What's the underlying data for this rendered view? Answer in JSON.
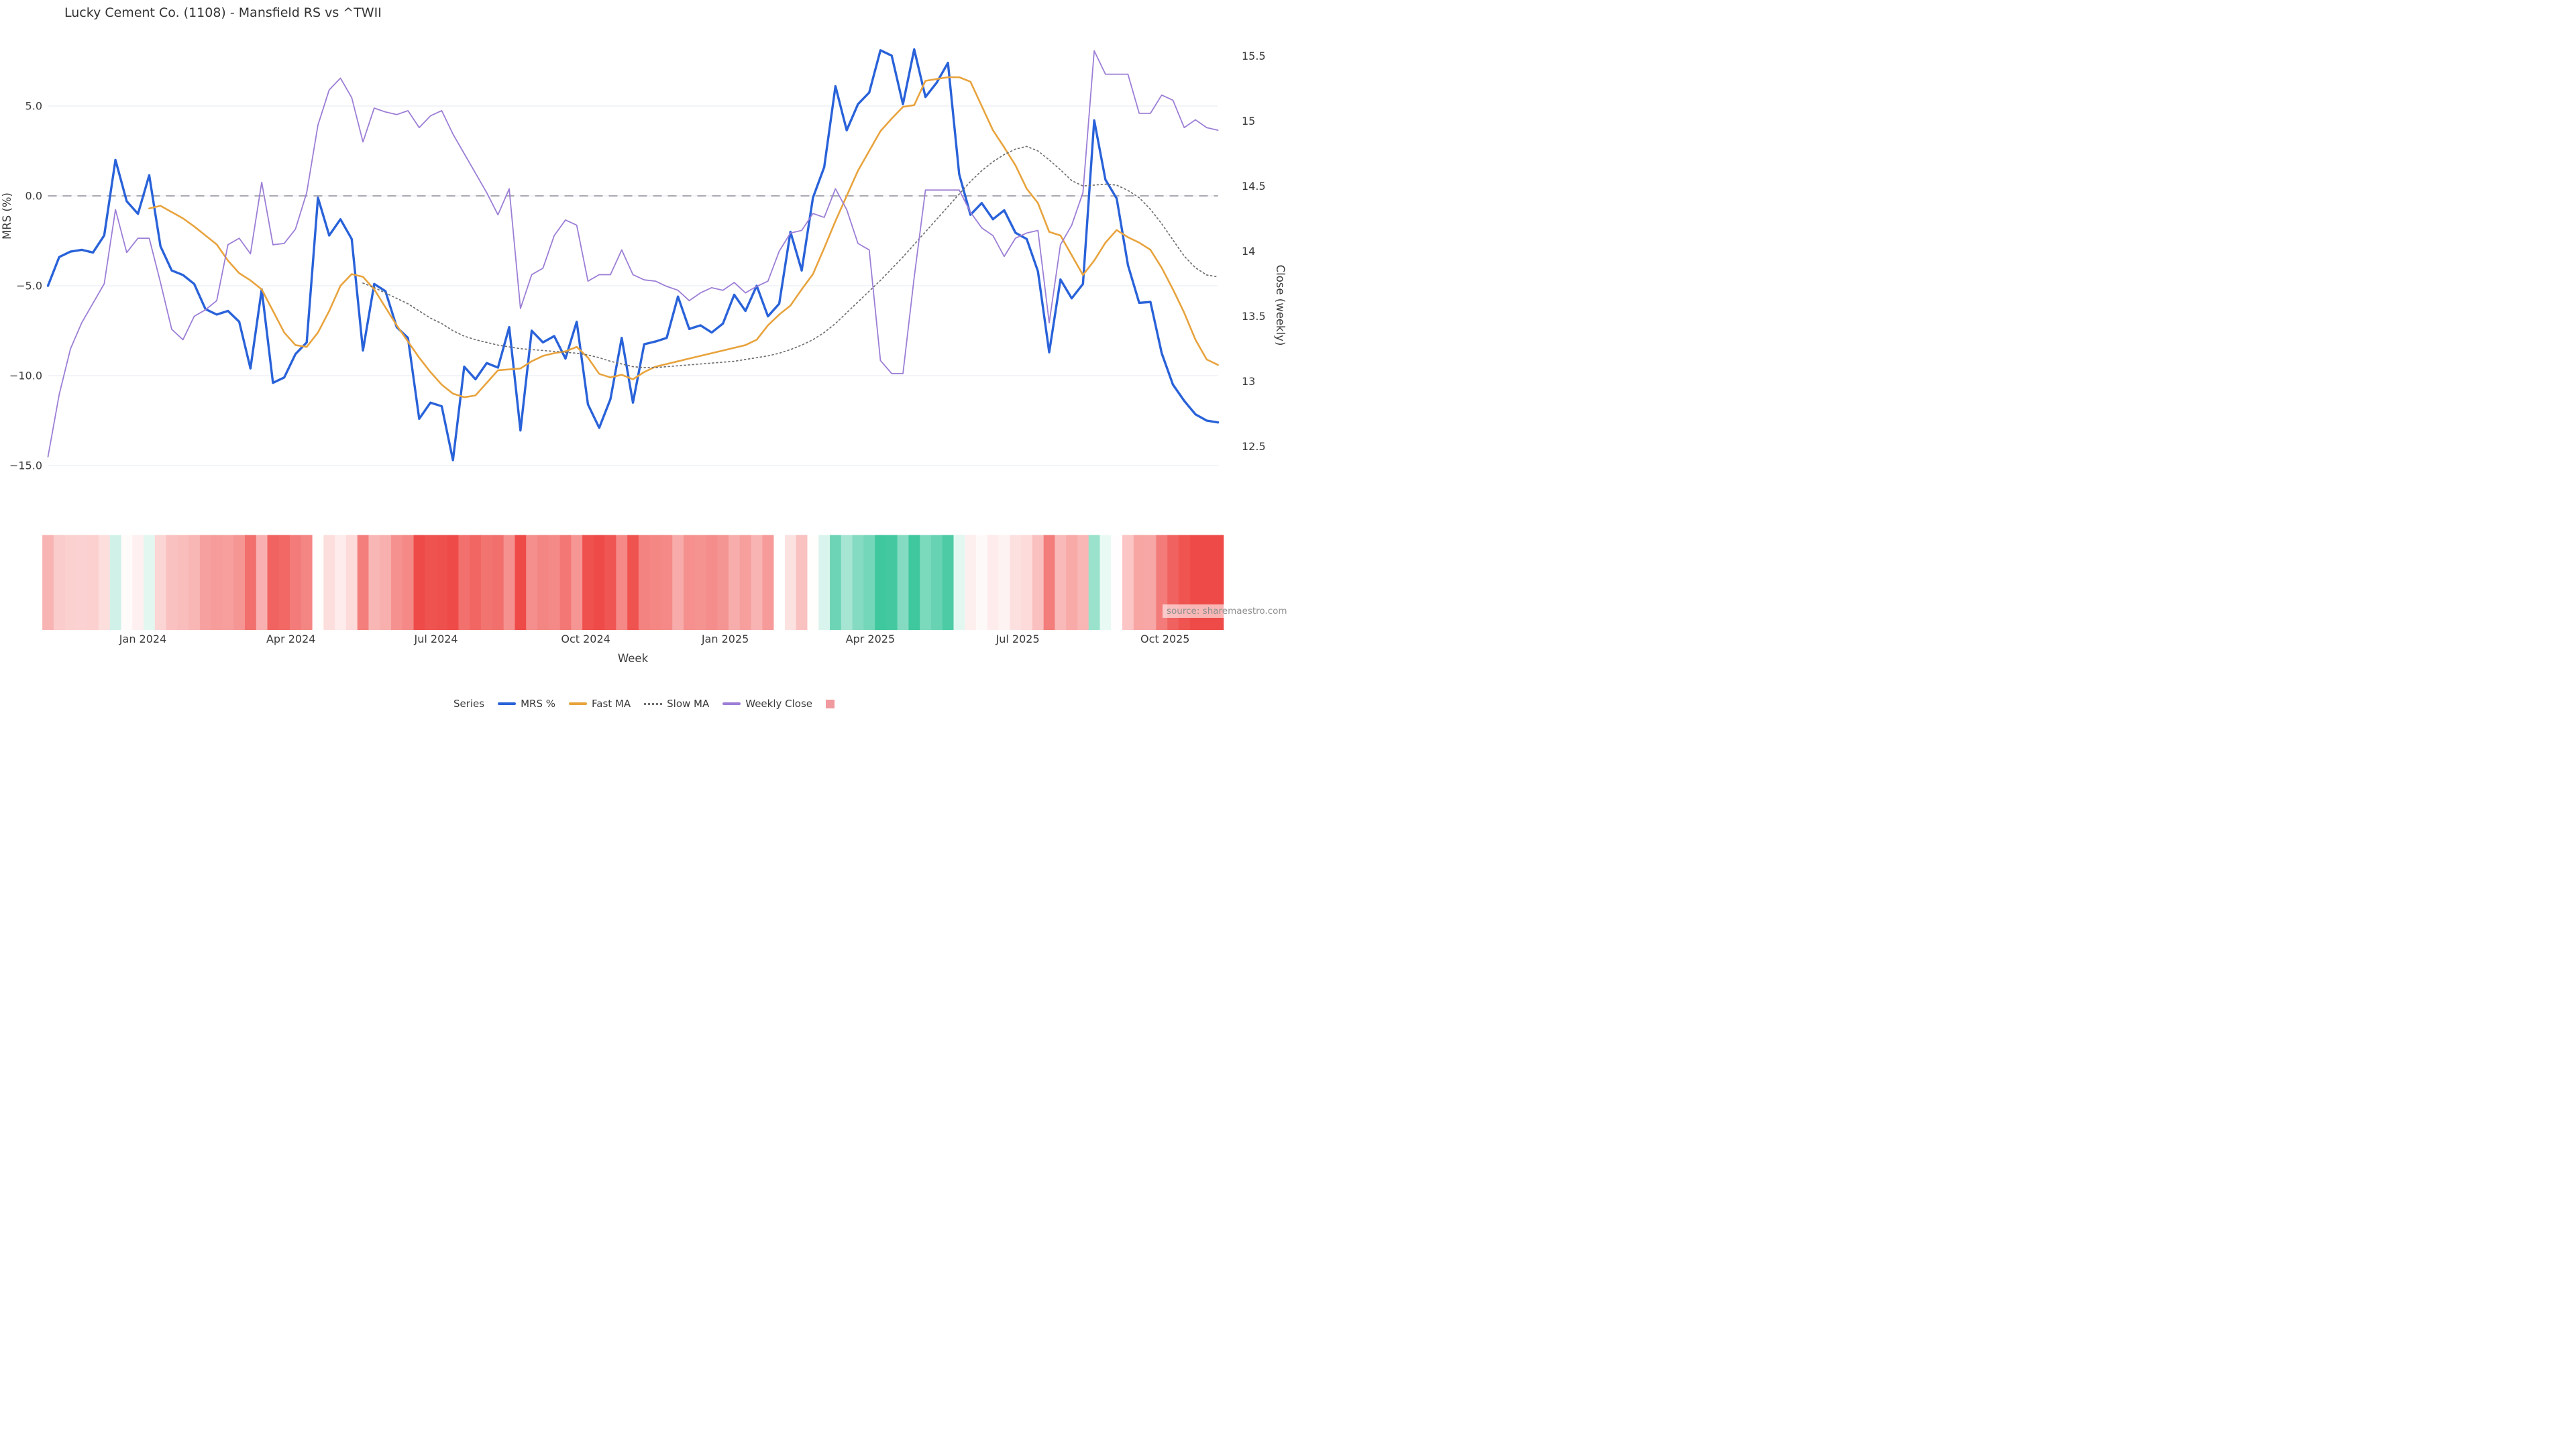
{
  "title": "Lucky Cement Co. (1108) - Mansfield RS vs ^TWII",
  "source_note": "source: sharemaestro.com",
  "axes": {
    "y_left": {
      "title": "MRS (%)",
      "ticks": [
        {
          "label": "5.0",
          "value": 5
        },
        {
          "label": "0.0",
          "value": 0
        },
        {
          "label": "−5.0",
          "value": -5
        },
        {
          "label": "−10.0",
          "value": -10
        },
        {
          "label": "−15.0",
          "value": -15
        }
      ]
    },
    "y_right": {
      "title": "Close (weekly)",
      "ticks": [
        {
          "label": "15.5",
          "value": 15.5
        },
        {
          "label": "15",
          "value": 15
        },
        {
          "label": "14.5",
          "value": 14.5
        },
        {
          "label": "14",
          "value": 14
        },
        {
          "label": "13.5",
          "value": 13.5
        },
        {
          "label": "13",
          "value": 13
        },
        {
          "label": "12.5",
          "value": 12.5
        }
      ]
    },
    "x": {
      "title": "Week",
      "ticks": [
        {
          "label": "Jan 2024",
          "week": 8.44
        },
        {
          "label": "Apr 2024",
          "week": 21.6
        },
        {
          "label": "Jul 2024",
          "week": 34.5
        },
        {
          "label": "Oct 2024",
          "week": 47.8
        },
        {
          "label": "Jan 2025",
          "week": 60.2
        },
        {
          "label": "Apr 2025",
          "week": 73.1
        },
        {
          "label": "Jul 2025",
          "week": 86.2
        },
        {
          "label": "Oct 2025",
          "week": 99.3
        }
      ]
    }
  },
  "legend": {
    "title": "Series",
    "items": [
      {
        "label": "MRS %",
        "color": "#2962d9",
        "style": "line"
      },
      {
        "label": "Fast MA",
        "color": "#e8a33d",
        "style": "line"
      },
      {
        "label": "Slow MA",
        "color": "#707070",
        "style": "dotted"
      },
      {
        "label": "Weekly Close",
        "color": "#9c7ed6",
        "style": "line"
      },
      {
        "label": "",
        "color": "#f0999e",
        "style": "square"
      }
    ]
  },
  "chart_data": {
    "type": "line",
    "x_unit": "weekly index (0 = first week shown, ~Nov 2023)",
    "n_points": 105,
    "ylim_left": [
      -15.5,
      8.8
    ],
    "ylim_right": [
      12.3,
      15.6
    ],
    "zero_dashed_line": 0,
    "grid": "horizontal, left-axis ticks",
    "legend_position": "bottom center",
    "series": [
      {
        "name": "MRS %",
        "axis": "left",
        "color": "#2962d9",
        "width": 3.4,
        "values": [
          -5.0,
          -3.4,
          -3.1,
          -3.0,
          -3.15,
          -2.2,
          2.0,
          -0.3,
          -1.0,
          1.15,
          -2.8,
          -4.15,
          -4.4,
          -4.9,
          -6.3,
          -6.6,
          -6.4,
          -7.0,
          -9.6,
          -5.2,
          -10.4,
          -10.1,
          -8.8,
          -8.15,
          -0.1,
          -2.2,
          -1.3,
          -2.4,
          -8.6,
          -4.9,
          -5.3,
          -7.3,
          -7.9,
          -12.4,
          -11.5,
          -11.7,
          -14.7,
          -9.5,
          -10.2,
          -9.3,
          -9.55,
          -7.3,
          -13.05,
          -7.5,
          -8.15,
          -7.8,
          -9.05,
          -7.0,
          -11.6,
          -12.9,
          -11.3,
          -7.9,
          -11.5,
          -8.25,
          -8.1,
          -7.9,
          -5.6,
          -7.4,
          -7.2,
          -7.6,
          -7.1,
          -5.5,
          -6.4,
          -5.0,
          -6.7,
          -6.0,
          -2.0,
          -4.15,
          -0.1,
          1.6,
          6.1,
          3.65,
          5.1,
          5.75,
          8.1,
          7.8,
          5.1,
          8.15,
          5.5,
          6.3,
          7.4,
          1.2,
          -1.05,
          -0.4,
          -1.3,
          -0.8,
          -2.05,
          -2.4,
          -4.2,
          -8.7,
          -4.65,
          -5.7,
          -4.9,
          4.2,
          0.9,
          -0.15,
          -3.85,
          -5.95,
          -5.9,
          -8.75,
          -10.5,
          -11.4,
          -12.15,
          -12.5,
          -12.6
        ]
      },
      {
        "name": "Fast MA",
        "axis": "left",
        "color": "#e8a33d",
        "width": 2.6,
        "values": [
          null,
          null,
          null,
          null,
          null,
          null,
          null,
          null,
          null,
          -0.7,
          -0.55,
          -0.9,
          -1.25,
          -1.7,
          -2.2,
          -2.7,
          -3.6,
          -4.3,
          -4.7,
          -5.2,
          -6.4,
          -7.6,
          -8.3,
          -8.4,
          -7.6,
          -6.4,
          -5.0,
          -4.35,
          -4.5,
          -5.2,
          -6.2,
          -7.2,
          -8.1,
          -9.0,
          -9.8,
          -10.5,
          -11.0,
          -11.2,
          -11.1,
          -10.4,
          -9.7,
          -9.65,
          -9.6,
          -9.2,
          -8.9,
          -8.75,
          -8.65,
          -8.4,
          -9.0,
          -9.9,
          -10.1,
          -9.95,
          -10.2,
          -9.8,
          -9.5,
          -9.35,
          -9.2,
          -9.05,
          -8.9,
          -8.75,
          -8.6,
          -8.45,
          -8.3,
          -8.0,
          -7.2,
          -6.6,
          -6.1,
          -5.2,
          -4.35,
          -2.9,
          -1.4,
          0.0,
          1.4,
          2.5,
          3.6,
          4.3,
          4.95,
          5.05,
          6.4,
          6.5,
          6.6,
          6.6,
          6.35,
          5.0,
          3.65,
          2.7,
          1.7,
          0.4,
          -0.4,
          -2.0,
          -2.2,
          -3.3,
          -4.4,
          -3.6,
          -2.6,
          -1.9,
          -2.3,
          -2.6,
          -3.0,
          -4.0,
          -5.2,
          -6.5,
          -8.0,
          -9.1,
          -9.4
        ]
      },
      {
        "name": "Slow MA",
        "axis": "left",
        "color": "#707070",
        "width": 1.7,
        "dash": "2 4",
        "values": [
          null,
          null,
          null,
          null,
          null,
          null,
          null,
          null,
          null,
          null,
          null,
          null,
          null,
          null,
          null,
          null,
          null,
          null,
          null,
          null,
          null,
          null,
          null,
          null,
          null,
          null,
          null,
          null,
          -4.85,
          -5.1,
          -5.4,
          -5.7,
          -6.0,
          -6.4,
          -6.8,
          -7.1,
          -7.5,
          -7.8,
          -8.0,
          -8.15,
          -8.3,
          -8.4,
          -8.5,
          -8.55,
          -8.6,
          -8.65,
          -8.7,
          -8.75,
          -8.85,
          -9.0,
          -9.2,
          -9.35,
          -9.5,
          -9.55,
          -9.55,
          -9.5,
          -9.45,
          -9.4,
          -9.35,
          -9.3,
          -9.25,
          -9.2,
          -9.1,
          -9.0,
          -8.9,
          -8.75,
          -8.55,
          -8.3,
          -8.0,
          -7.6,
          -7.1,
          -6.5,
          -5.9,
          -5.3,
          -4.7,
          -4.05,
          -3.4,
          -2.7,
          -2.0,
          -1.3,
          -0.6,
          0.1,
          0.8,
          1.4,
          1.9,
          2.3,
          2.6,
          2.75,
          2.5,
          2.0,
          1.45,
          0.85,
          0.55,
          0.6,
          0.65,
          0.6,
          0.3,
          -0.1,
          -0.75,
          -1.55,
          -2.45,
          -3.35,
          -4.0,
          -4.4,
          -4.5
        ]
      },
      {
        "name": "Weekly Close",
        "axis": "right",
        "color": "#9c7ed6",
        "width": 1.8,
        "values": [
          12.42,
          12.9,
          13.25,
          13.45,
          13.6,
          13.75,
          14.32,
          13.99,
          14.1,
          14.1,
          13.76,
          13.4,
          13.32,
          13.5,
          13.55,
          13.62,
          14.05,
          14.1,
          13.98,
          14.53,
          14.05,
          14.06,
          14.17,
          14.45,
          14.97,
          15.24,
          15.33,
          15.18,
          14.84,
          15.1,
          15.07,
          15.05,
          15.08,
          14.95,
          15.04,
          15.08,
          14.9,
          14.75,
          14.6,
          14.45,
          14.28,
          14.48,
          13.56,
          13.82,
          13.87,
          14.12,
          14.24,
          14.2,
          13.77,
          13.82,
          13.82,
          14.01,
          13.82,
          13.78,
          13.77,
          13.73,
          13.7,
          13.62,
          13.68,
          13.72,
          13.7,
          13.76,
          13.68,
          13.73,
          13.77,
          14.0,
          14.14,
          14.16,
          14.29,
          14.26,
          14.48,
          14.32,
          14.06,
          14.01,
          13.16,
          13.06,
          13.06,
          13.8,
          14.47,
          14.47,
          14.47,
          14.47,
          14.3,
          14.18,
          14.12,
          13.96,
          14.1,
          14.14,
          14.16,
          13.45,
          14.05,
          14.2,
          14.45,
          15.54,
          15.36,
          15.36,
          15.36,
          15.06,
          15.06,
          15.2,
          15.16,
          14.95,
          15.01,
          14.95,
          14.93
        ]
      }
    ],
    "heatmap": {
      "based_on": "MRS %",
      "description": "weekly strip below plot; red = negative MRS, green = positive MRS, white gap at missing week",
      "gap_week": 65,
      "negative_color": "#ee4b48",
      "negative_saturation_at": -12,
      "positive_color": "#3fc79e",
      "positive_saturation_at": 8
    }
  },
  "style_colors": {
    "background": "#ffffff",
    "grid": "#eef0f6",
    "zero_dash": "#8f8f99",
    "text": "#3a3a3a",
    "source_text": "#8f8f8f"
  }
}
